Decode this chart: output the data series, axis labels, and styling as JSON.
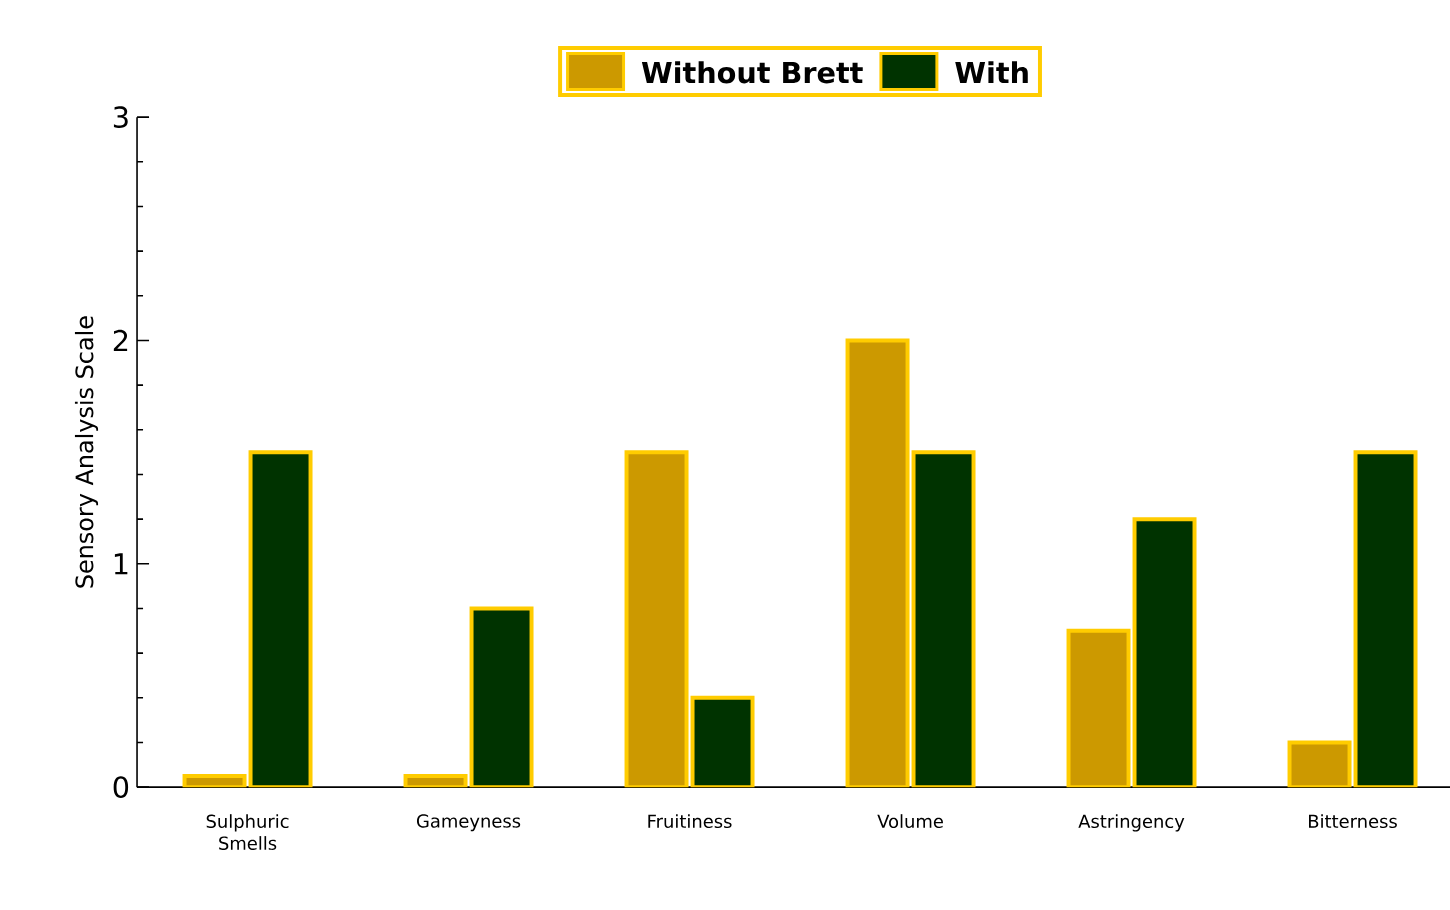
{
  "chart_data": {
    "type": "bar",
    "ylabel": "Sensory Analysis Scale",
    "categories": [
      "Sulphuric Smells",
      "Gameyness",
      "Fruitiness",
      "Volume",
      "Astringency",
      "Bitterness"
    ],
    "series": [
      {
        "name": "Without Brett",
        "color": "#cc9900",
        "values": [
          0.05,
          0.05,
          1.5,
          2.0,
          0.7,
          0.2
        ]
      },
      {
        "name": "With",
        "color": "#003300",
        "values": [
          1.5,
          0.8,
          0.4,
          1.5,
          1.2,
          1.5
        ]
      }
    ],
    "ylim": [
      0,
      3
    ],
    "yticks": [
      0,
      1,
      2,
      3
    ],
    "legend": "top",
    "grid": false
  }
}
